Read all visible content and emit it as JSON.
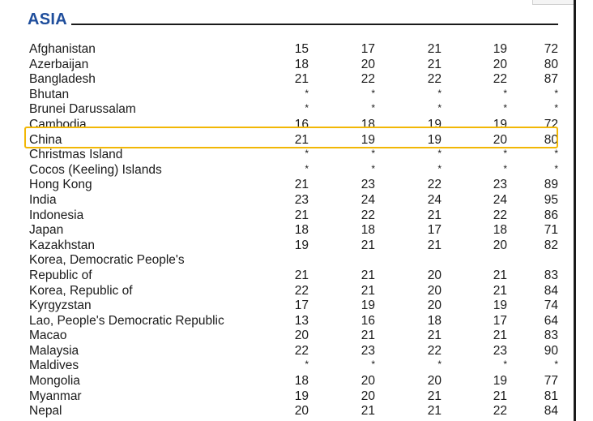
{
  "section": {
    "title": "ASIA"
  },
  "table": {
    "rows": [
      {
        "country": "Afghanistan",
        "values": [
          "15",
          "17",
          "21",
          "19",
          "72"
        ]
      },
      {
        "country": "Azerbaijan",
        "values": [
          "18",
          "20",
          "21",
          "20",
          "80"
        ]
      },
      {
        "country": "Bangladesh",
        "values": [
          "21",
          "22",
          "22",
          "22",
          "87"
        ]
      },
      {
        "country": "Bhutan",
        "values": [
          "*",
          "*",
          "*",
          "*",
          "*"
        ]
      },
      {
        "country": "Brunei Darussalam",
        "values": [
          "*",
          "*",
          "*",
          "*",
          "*"
        ]
      },
      {
        "country": "Cambodia",
        "values": [
          "16",
          "18",
          "19",
          "19",
          "72"
        ]
      },
      {
        "country": "China",
        "values": [
          "21",
          "19",
          "19",
          "20",
          "80"
        ]
      },
      {
        "country": "Christmas Island",
        "values": [
          "*",
          "*",
          "*",
          "*",
          "*"
        ]
      },
      {
        "country": "Cocos (Keeling) Islands",
        "values": [
          "*",
          "*",
          "*",
          "*",
          "*"
        ]
      },
      {
        "country": "Hong Kong",
        "values": [
          "21",
          "23",
          "22",
          "23",
          "89"
        ]
      },
      {
        "country": "India",
        "values": [
          "23",
          "24",
          "24",
          "24",
          "95"
        ]
      },
      {
        "country": "Indonesia",
        "values": [
          "21",
          "22",
          "21",
          "22",
          "86"
        ]
      },
      {
        "country": "Japan",
        "values": [
          "18",
          "18",
          "17",
          "18",
          "71"
        ]
      },
      {
        "country": "Kazakhstan",
        "values": [
          "19",
          "21",
          "21",
          "20",
          "82"
        ]
      },
      {
        "country": "Korea, Democratic People's",
        "values": [
          "",
          "",
          "",
          "",
          ""
        ]
      },
      {
        "country": "Republic of",
        "values": [
          "21",
          "21",
          "20",
          "21",
          "83"
        ]
      },
      {
        "country": "Korea, Republic of",
        "values": [
          "22",
          "21",
          "20",
          "21",
          "84"
        ]
      },
      {
        "country": "Kyrgyzstan",
        "values": [
          "17",
          "19",
          "20",
          "19",
          "74"
        ]
      },
      {
        "country": "Lao, People's Democratic Republic",
        "values": [
          "13",
          "16",
          "18",
          "17",
          "64"
        ]
      },
      {
        "country": "Macao",
        "values": [
          "20",
          "21",
          "21",
          "21",
          "83"
        ]
      },
      {
        "country": "Malaysia",
        "values": [
          "22",
          "23",
          "22",
          "23",
          "90"
        ]
      },
      {
        "country": "Maldives",
        "values": [
          "*",
          "*",
          "*",
          "*",
          "*"
        ]
      },
      {
        "country": "Mongolia",
        "values": [
          "18",
          "20",
          "20",
          "19",
          "77"
        ]
      },
      {
        "country": "Myanmar",
        "values": [
          "19",
          "20",
          "21",
          "21",
          "81"
        ]
      },
      {
        "country": "Nepal",
        "values": [
          "20",
          "21",
          "21",
          "22",
          "84"
        ]
      }
    ],
    "highlighted_country": "China"
  },
  "colors": {
    "heading": "#1f4e9c",
    "highlight": "#f2b705",
    "text": "#1a1a1a"
  }
}
